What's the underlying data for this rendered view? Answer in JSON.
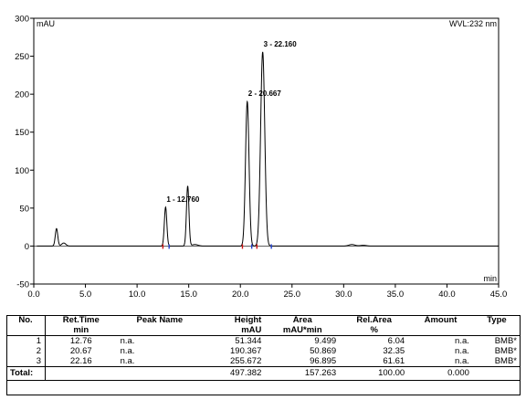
{
  "chart_data": {
    "type": "line",
    "y_unit_label": "mAU",
    "x_unit_label": "min",
    "wavelength_label": "WVL:232 nm",
    "xlim": [
      0,
      45
    ],
    "ylim": [
      -50,
      300
    ],
    "x_ticks": [
      "0.0",
      "5.0",
      "10.0",
      "15.0",
      "20.0",
      "25.0",
      "30.0",
      "35.0",
      "40.0",
      "45.0"
    ],
    "y_ticks": [
      "-50",
      "0",
      "50",
      "100",
      "150",
      "200",
      "250",
      "300"
    ],
    "grid": false,
    "baseline": 0,
    "peaks": [
      {
        "t": 2.2,
        "h": 23,
        "w": 0.12
      },
      {
        "t": 2.9,
        "h": 4,
        "w": 0.2
      },
      {
        "t": 12.76,
        "h": 51.3,
        "w": 0.12
      },
      {
        "t": 14.9,
        "h": 79,
        "w": 0.12
      },
      {
        "t": 15.6,
        "h": 2,
        "w": 0.3
      },
      {
        "t": 20.667,
        "h": 190.4,
        "w": 0.17
      },
      {
        "t": 22.16,
        "h": 255.7,
        "w": 0.2
      },
      {
        "t": 30.8,
        "h": 2,
        "w": 0.3
      },
      {
        "t": 31.9,
        "h": 1,
        "w": 0.3
      }
    ],
    "annotations": [
      {
        "text": "1 - 12.760",
        "x": 12.76,
        "y": 51.3
      },
      {
        "text": "2 - 20.667",
        "x": 20.667,
        "y": 190.4
      },
      {
        "text": "3 - 22.160",
        "x": 22.16,
        "y": 255.7
      }
    ],
    "integration_markers": [
      12.5,
      13.1,
      20.2,
      21.1,
      21.6,
      23.0
    ]
  },
  "table": {
    "headers": {
      "no": "No.",
      "ret_time_1": "Ret.Time",
      "ret_time_2": "min",
      "peak_name": "Peak Name",
      "height_1": "Height",
      "height_2": "mAU",
      "area_1": "Area",
      "area_2": "mAU*min",
      "rel_area_1": "Rel.Area",
      "rel_area_2": "%",
      "amount": "Amount",
      "type": "Type"
    },
    "rows": [
      {
        "no": "1",
        "ret_time": "12.76",
        "peak_name": "n.a.",
        "height": "51.344",
        "area": "9.499",
        "rel_area": "6.04",
        "amount": "n.a.",
        "type": "BMB*"
      },
      {
        "no": "2",
        "ret_time": "20.67",
        "peak_name": "n.a.",
        "height": "190.367",
        "area": "50.869",
        "rel_area": "32.35",
        "amount": "n.a.",
        "type": "BMB*"
      },
      {
        "no": "3",
        "ret_time": "22.16",
        "peak_name": "n.a.",
        "height": "255.672",
        "area": "96.895",
        "rel_area": "61.61",
        "amount": "n.a.",
        "type": "BMB*"
      }
    ],
    "total": {
      "label": "Total:",
      "height": "497.382",
      "area": "157.263",
      "rel_area": "100.00",
      "amount": "0.000"
    }
  }
}
